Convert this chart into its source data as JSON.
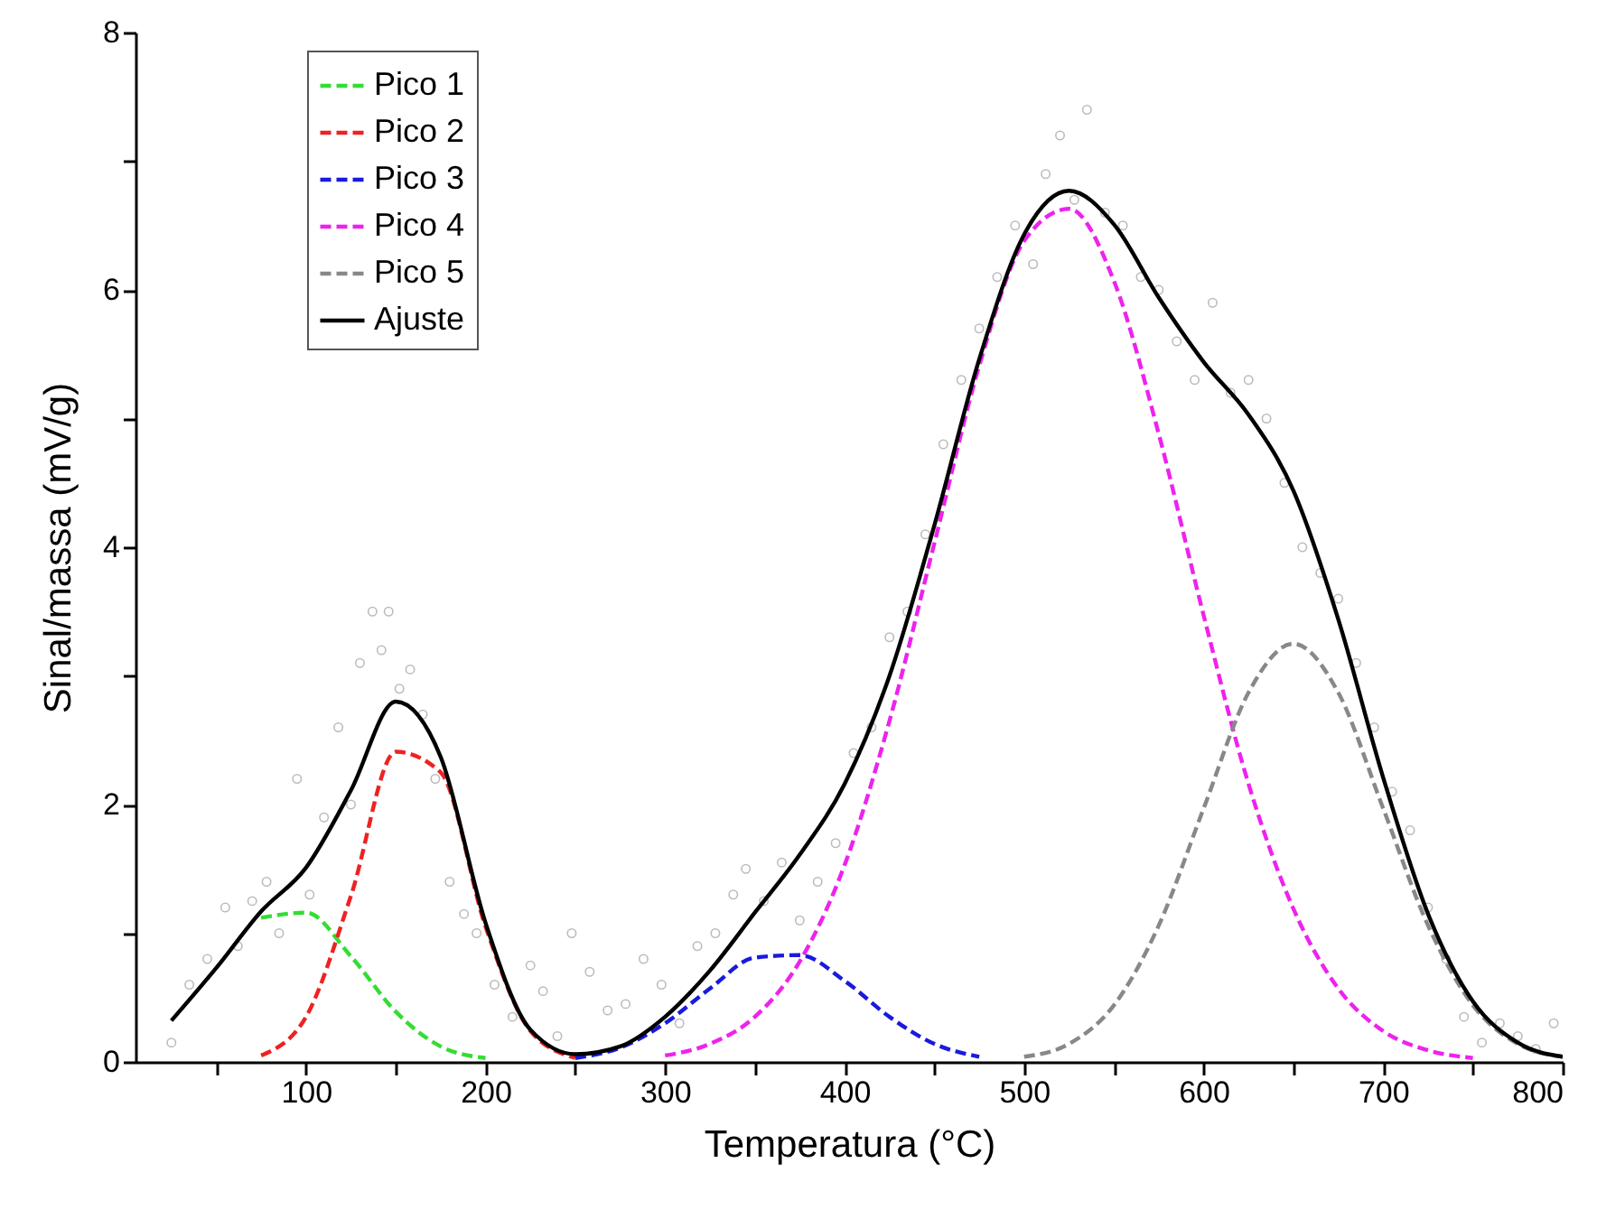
{
  "chart_data": {
    "type": "line",
    "xlabel": "Temperatura (°C)",
    "ylabel": "Sinal/massa (mV/g)",
    "xlim": [
      5,
      800
    ],
    "xticks": [
      {
        "value": 50,
        "label": null
      },
      100,
      {
        "value": 150,
        "label": null
      },
      200,
      {
        "value": 250,
        "label": null
      },
      300,
      {
        "value": 350,
        "label": null
      },
      400,
      {
        "value": 450,
        "label": null
      },
      500,
      {
        "value": 550,
        "label": null
      },
      600,
      {
        "value": 650,
        "label": null
      },
      700,
      {
        "value": 750,
        "label": null
      },
      800
    ],
    "ylim": [
      0,
      8
    ],
    "yticks": [
      0,
      {
        "value": 1,
        "label": null
      },
      2,
      {
        "value": 3,
        "label": null
      },
      4,
      {
        "value": 5,
        "label": null
      },
      6,
      {
        "value": 7,
        "label": null
      },
      8
    ],
    "legend": "top left",
    "grid": false,
    "x": [
      25,
      50,
      75,
      100,
      125,
      150,
      175,
      200,
      225,
      250,
      275,
      300,
      325,
      350,
      375,
      400,
      425,
      450,
      475,
      500,
      525,
      550,
      575,
      600,
      625,
      650,
      675,
      700,
      725,
      750,
      775,
      800
    ],
    "series": [
      {
        "type": "scatter",
        "color": "#a0a0a0",
        "marker": "circle",
        "x": [
          25,
          35,
          45,
          55,
          62,
          70,
          78,
          85,
          95,
          102,
          110,
          118,
          125,
          130,
          137,
          142,
          146,
          152,
          158,
          165,
          172,
          180,
          188,
          195,
          205,
          215,
          225,
          232,
          240,
          248,
          258,
          268,
          278,
          288,
          298,
          308,
          318,
          328,
          338,
          345,
          355,
          365,
          375,
          385,
          395,
          405,
          415,
          425,
          435,
          445,
          455,
          465,
          475,
          485,
          495,
          505,
          512,
          520,
          528,
          535,
          545,
          555,
          565,
          575,
          585,
          595,
          605,
          615,
          625,
          635,
          645,
          655,
          665,
          675,
          685,
          695,
          705,
          715,
          725,
          735,
          745,
          755,
          765,
          775,
          785,
          795
        ],
        "values": [
          0.15,
          0.6,
          0.8,
          1.2,
          0.9,
          1.25,
          1.4,
          1.0,
          2.2,
          1.3,
          1.9,
          2.6,
          2.0,
          3.1,
          3.5,
          3.2,
          3.5,
          2.9,
          3.05,
          2.7,
          2.2,
          1.4,
          1.15,
          1.0,
          0.6,
          0.35,
          0.75,
          0.55,
          0.2,
          1.0,
          0.7,
          0.4,
          0.45,
          0.8,
          0.6,
          0.3,
          0.9,
          1.0,
          1.3,
          1.5,
          1.25,
          1.55,
          1.1,
          1.4,
          1.7,
          2.4,
          2.6,
          3.3,
          3.5,
          4.1,
          4.8,
          5.3,
          5.7,
          6.1,
          6.5,
          6.2,
          6.9,
          7.2,
          6.7,
          7.4,
          6.6,
          6.5,
          6.1,
          6.0,
          5.6,
          5.3,
          5.9,
          5.2,
          5.3,
          5.0,
          4.5,
          4.0,
          3.8,
          3.6,
          3.1,
          2.6,
          2.1,
          1.8,
          1.2,
          0.8,
          0.35,
          0.15,
          0.3,
          0.2,
          0.1,
          0.3
        ]
      },
      {
        "name": "Pico 1",
        "color": "#33dd33",
        "line_style": "dashed",
        "values": [
          null,
          null,
          1.12,
          1.16,
          0.82,
          0.39,
          0.12,
          0.03,
          null,
          null,
          null,
          null,
          null,
          null,
          null,
          null,
          null,
          null,
          null,
          null,
          null,
          null,
          null,
          null,
          null,
          null,
          null,
          null,
          null,
          null,
          null,
          null
        ]
      },
      {
        "name": "Pico 2",
        "color": "#ee2222",
        "line_style": "dashed",
        "values": [
          null,
          null,
          0.05,
          0.35,
          1.29,
          2.41,
          2.25,
          1.05,
          0.24,
          0.03,
          null,
          null,
          null,
          null,
          null,
          null,
          null,
          null,
          null,
          null,
          null,
          null,
          null,
          null,
          null,
          null,
          null,
          null,
          null,
          null,
          null,
          null
        ]
      },
      {
        "name": "Pico 3",
        "color": "#1a1add",
        "line_style": "dashed",
        "values": [
          null,
          null,
          null,
          null,
          null,
          null,
          null,
          null,
          null,
          0.03,
          0.11,
          0.3,
          0.57,
          0.81,
          0.83,
          0.63,
          0.35,
          0.14,
          0.04,
          null,
          null,
          null,
          null,
          null,
          null,
          null,
          null,
          null,
          null,
          null,
          null,
          null
        ]
      },
      {
        "name": "Pico 4",
        "color": "#ee22ee",
        "line_style": "dashed",
        "values": [
          null,
          null,
          null,
          null,
          null,
          null,
          null,
          null,
          null,
          null,
          null,
          0.05,
          0.14,
          0.35,
          0.78,
          1.53,
          2.65,
          4.03,
          5.41,
          6.38,
          6.63,
          6.07,
          4.88,
          3.47,
          2.16,
          1.19,
          0.57,
          0.24,
          0.09,
          0.03,
          null,
          null
        ]
      },
      {
        "name": "Pico 5",
        "color": "#888888",
        "line_style": "dashed",
        "values": [
          null,
          null,
          null,
          null,
          null,
          null,
          null,
          null,
          null,
          null,
          null,
          null,
          null,
          null,
          null,
          null,
          null,
          null,
          null,
          0.04,
          0.14,
          0.44,
          1.06,
          1.97,
          2.87,
          3.25,
          2.87,
          1.97,
          1.06,
          0.44,
          0.14,
          0.04
        ]
      },
      {
        "name": "Ajuste",
        "color": "#000000",
        "line_style": "solid",
        "values": [
          0.32,
          0.73,
          1.17,
          1.51,
          2.11,
          2.8,
          2.37,
          1.08,
          0.25,
          0.06,
          0.12,
          0.35,
          0.71,
          1.16,
          1.61,
          2.16,
          3.0,
          4.17,
          5.46,
          6.43,
          6.77,
          6.51,
          5.94,
          5.44,
          5.03,
          4.44,
          3.44,
          2.21,
          1.15,
          0.47,
          0.15,
          0.04
        ]
      }
    ]
  }
}
